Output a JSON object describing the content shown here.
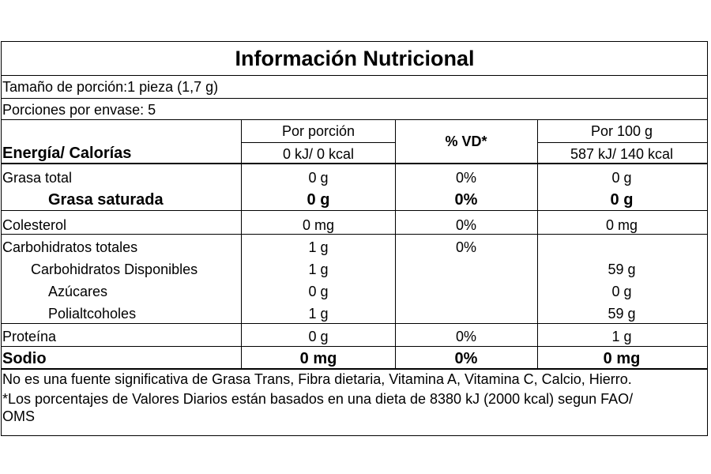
{
  "title": "Información Nutricional",
  "serving_size": "Tamaño de porción:1 pieza (1,7 g)",
  "servings_per_container": "Porciones por envase: 5",
  "header": {
    "energy_label": "Energía/ Calorías",
    "col_portion": "Por porción",
    "col_vd": "% VD*",
    "col_100g": "Por 100 g",
    "energy_portion": "0 kJ/ 0 kcal",
    "energy_100g": "587 kJ/ 140 kcal"
  },
  "rows": [
    {
      "name": "Grasa total",
      "portion": "0 g",
      "vd": "0%",
      "per100": "0 g"
    },
    {
      "name": "Grasa saturada",
      "portion": "0 g",
      "vd": "0%",
      "per100": "0 g"
    },
    {
      "name": "Colesterol",
      "portion": "0 mg",
      "vd": "0%",
      "per100": "0 mg"
    },
    {
      "name": "Carbohidratos totales",
      "portion": "1 g",
      "vd": "0%",
      "per100": ""
    },
    {
      "name": "Carbohidratos Disponibles",
      "portion": "1 g",
      "vd": "",
      "per100": "59 g"
    },
    {
      "name": "Azúcares",
      "portion": "0 g",
      "vd": "",
      "per100": "0 g"
    },
    {
      "name": "Polialtcoholes",
      "portion": "1 g",
      "vd": "",
      "per100": "59 g"
    },
    {
      "name": "Proteína",
      "portion": "0 g",
      "vd": "0%",
      "per100": "1 g"
    },
    {
      "name": "Sodio",
      "portion": "0 mg",
      "vd": "0%",
      "per100": "0 mg"
    }
  ],
  "footnote_1": "No es una fuente significativa de Grasa Trans, Fibra dietaria, Vitamina A, Vitamina C, Calcio, Hierro.",
  "footnote_2a": "*Los porcentajes de Valores Diarios están basados en una dieta de 8380 kJ (2000 kcal) segun FAO/",
  "footnote_2b": "OMS"
}
